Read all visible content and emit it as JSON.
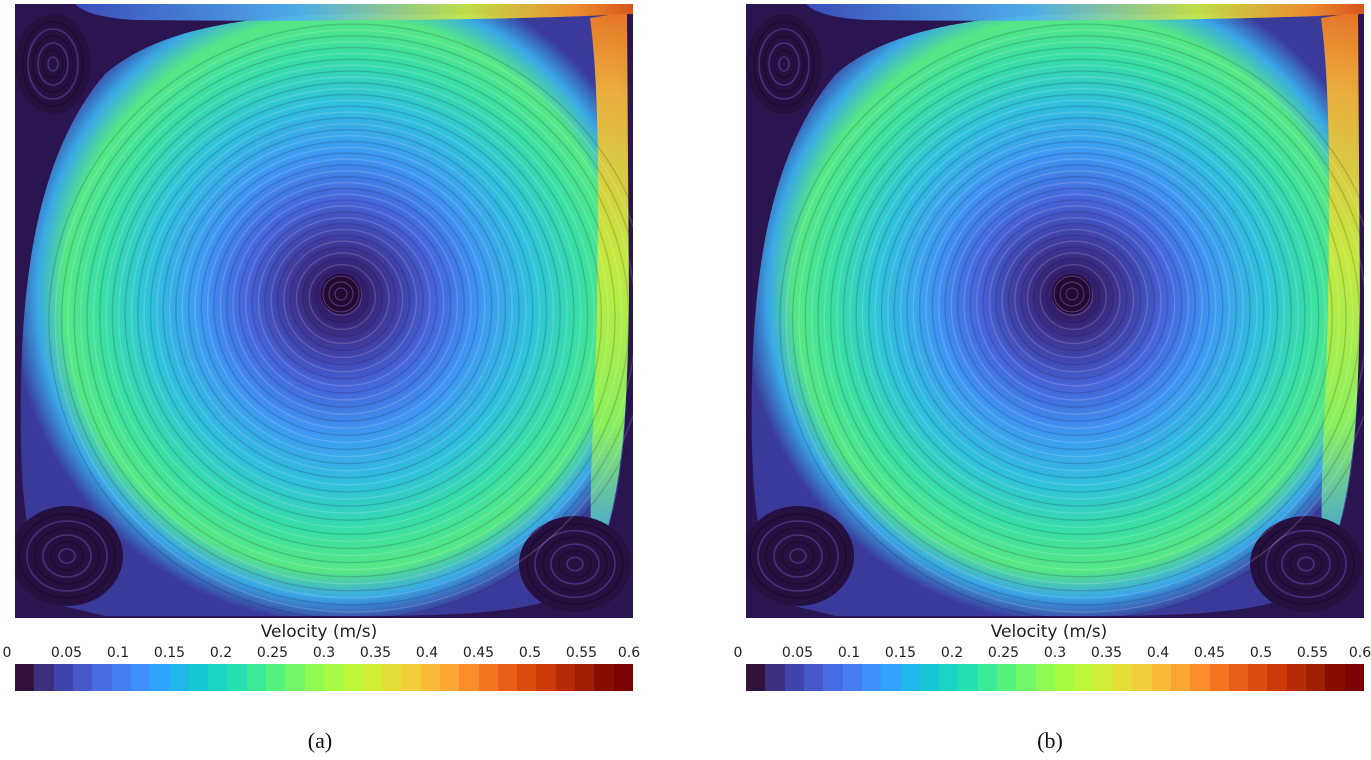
{
  "panels": [
    {
      "id": "a",
      "sub_label": "(a)",
      "colorbar": {
        "title": "Velocity (m/s)",
        "ticks": [
          "0",
          "0.05",
          "0.1",
          "0.15",
          "0.2",
          "0.25",
          "0.3",
          "0.35",
          "0.4",
          "0.45",
          "0.5",
          "0.55",
          "0.6"
        ]
      }
    },
    {
      "id": "b",
      "sub_label": "(b)",
      "colorbar": {
        "title": "Velocity (m/s)",
        "ticks": [
          "0",
          "0.05",
          "0.1",
          "0.15",
          "0.2",
          "0.25",
          "0.3",
          "0.35",
          "0.4",
          "0.45",
          "0.5",
          "0.55",
          "0.6"
        ]
      }
    }
  ],
  "colormap": [
    "#30123b",
    "#3b2f80",
    "#4145ab",
    "#4559cb",
    "#466be3",
    "#447ef2",
    "#3e91fd",
    "#2fa3fb",
    "#1fb7ea",
    "#18c7d6",
    "#1bd4c4",
    "#26dfb0",
    "#3aea98",
    "#55f27f",
    "#72f868",
    "#8ffb52",
    "#a6fb42",
    "#bcf638",
    "#d0ec34",
    "#e2de37",
    "#f0cd3a",
    "#f9ba38",
    "#fda532",
    "#fb8d2a",
    "#f47421",
    "#e95f17",
    "#dc4c0e",
    "#cb3a07",
    "#b72c04",
    "#a01f02",
    "#870f01",
    "#7a0403"
  ],
  "palette": {
    "dark": "#2a1550",
    "blue": "#4a66e0",
    "cyan": "#3fb4f0",
    "teal": "#33d6b8",
    "green": "#6ef070",
    "yellow": "#d6e640",
    "orange": "#f28a28",
    "red": "#c23a0c"
  }
}
